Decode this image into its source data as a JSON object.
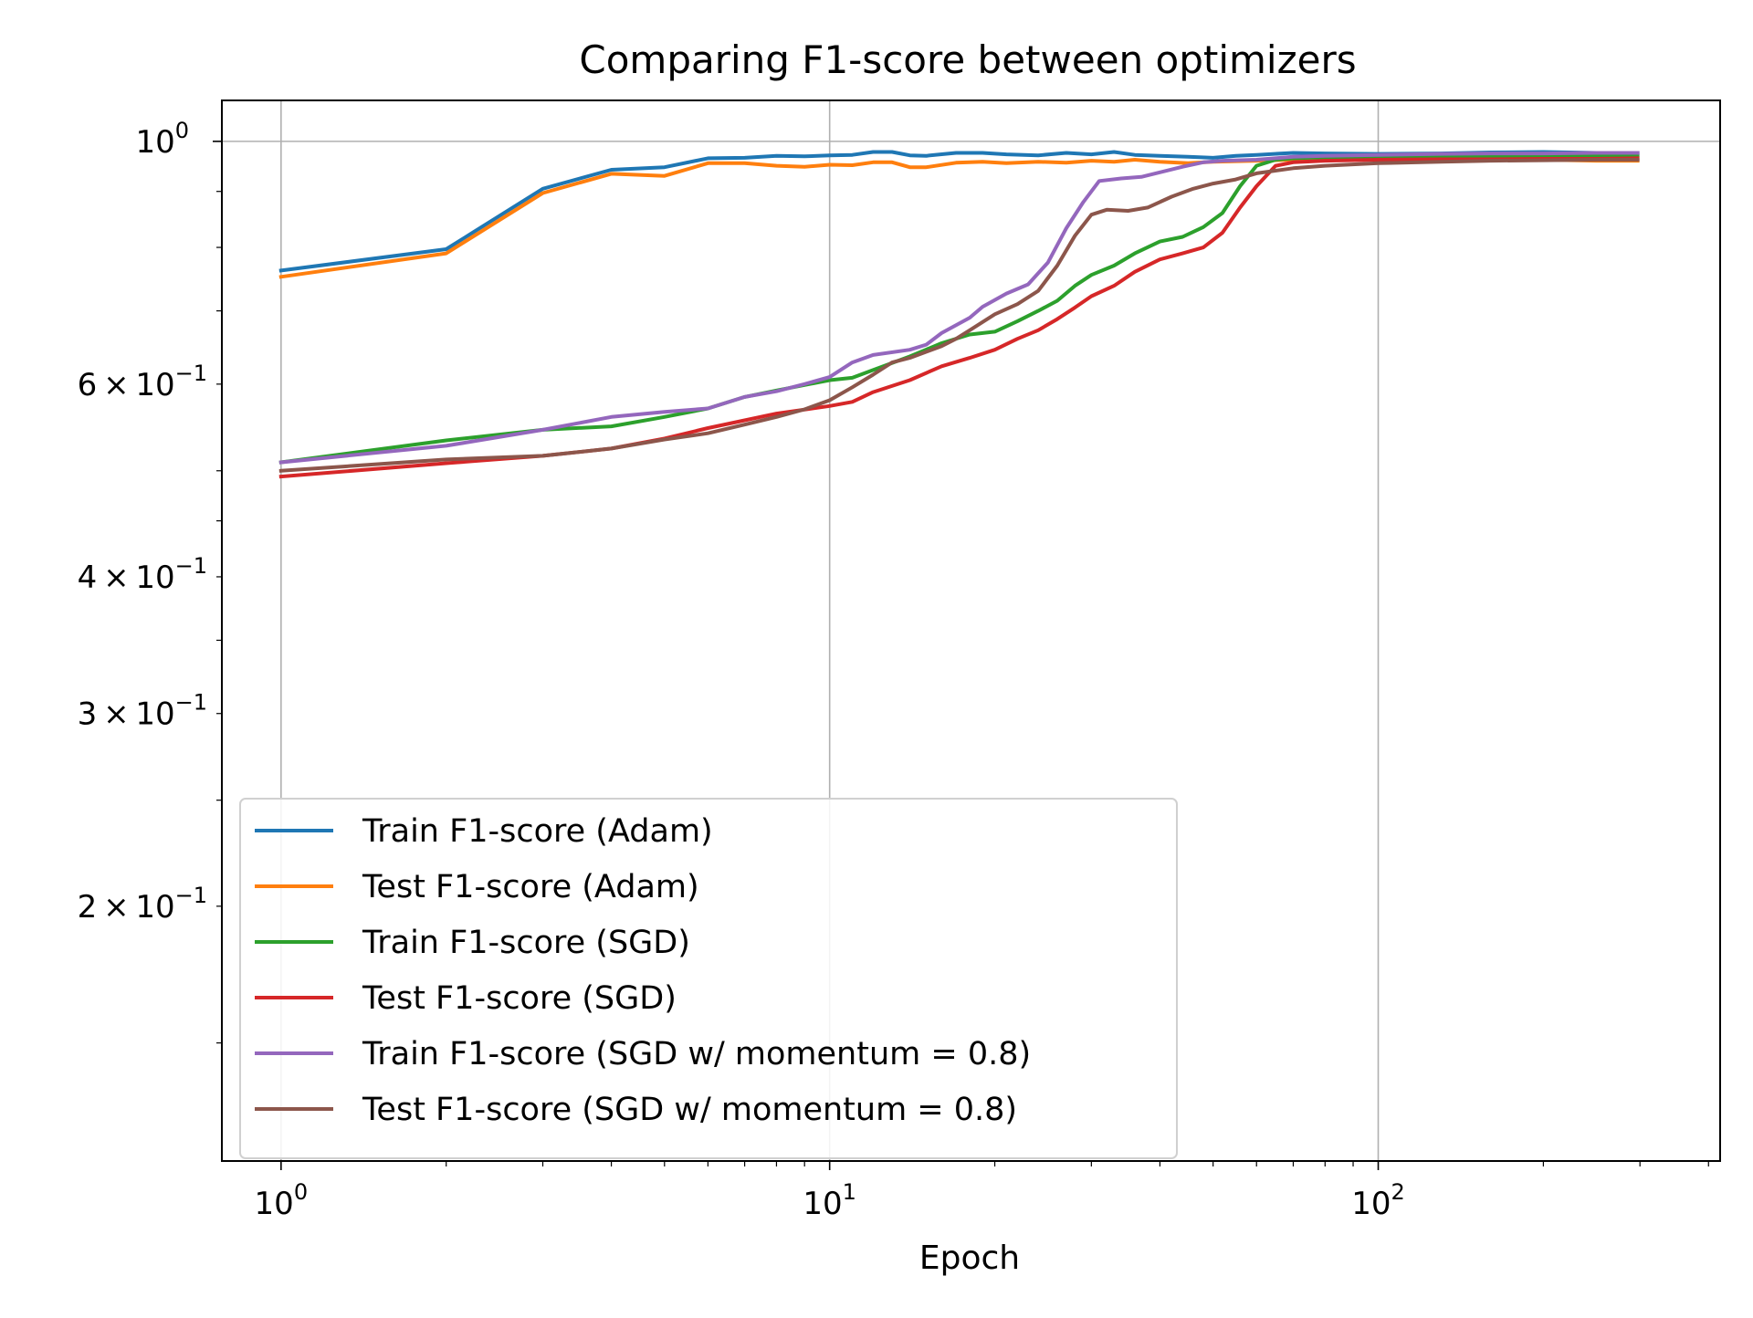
{
  "chart_data": {
    "type": "line",
    "title": "Comparing F1-score between optimizers",
    "xlabel": "Epoch",
    "ylabel": "",
    "xscale": "log",
    "yscale": "log",
    "xlim": [
      0.78,
      420
    ],
    "ylim": [
      0.117,
      1.09
    ],
    "grid": true,
    "legend_loc": "lower-left",
    "x_major_ticks": [
      {
        "value": 1,
        "base": "10",
        "exp": "0"
      },
      {
        "value": 10,
        "base": "10",
        "exp": "1"
      },
      {
        "value": 100,
        "base": "10",
        "exp": "2"
      }
    ],
    "y_major_ticks": [
      {
        "value": 1.0,
        "base": "10",
        "exp": "0",
        "mantissa": ""
      }
    ],
    "y_minor_ticks": [
      {
        "value": 0.6,
        "mantissa": "6",
        "base": "10",
        "exp": "−1"
      },
      {
        "value": 0.4,
        "mantissa": "4",
        "base": "10",
        "exp": "−1"
      },
      {
        "value": 0.3,
        "mantissa": "3",
        "base": "10",
        "exp": "−1"
      },
      {
        "value": 0.2,
        "mantissa": "2",
        "base": "10",
        "exp": "−1"
      }
    ],
    "series": [
      {
        "name": "Train F1-score (Adam)",
        "color": "#1f77b4",
        "points": [
          [
            1,
            0.762
          ],
          [
            2,
            0.797
          ],
          [
            3,
            0.905
          ],
          [
            4,
            0.942
          ],
          [
            5,
            0.947
          ],
          [
            6,
            0.965
          ],
          [
            7,
            0.966
          ],
          [
            8,
            0.97
          ],
          [
            9,
            0.969
          ],
          [
            10,
            0.971
          ],
          [
            11,
            0.972
          ],
          [
            12,
            0.978
          ],
          [
            13,
            0.978
          ],
          [
            14,
            0.971
          ],
          [
            15,
            0.97
          ],
          [
            17,
            0.976
          ],
          [
            19,
            0.976
          ],
          [
            21,
            0.973
          ],
          [
            24,
            0.971
          ],
          [
            27,
            0.976
          ],
          [
            30,
            0.973
          ],
          [
            33,
            0.978
          ],
          [
            36,
            0.972
          ],
          [
            40,
            0.97
          ],
          [
            45,
            0.968
          ],
          [
            50,
            0.966
          ],
          [
            55,
            0.97
          ],
          [
            60,
            0.972
          ],
          [
            70,
            0.976
          ],
          [
            80,
            0.975
          ],
          [
            100,
            0.974
          ],
          [
            130,
            0.975
          ],
          [
            160,
            0.977
          ],
          [
            200,
            0.978
          ],
          [
            250,
            0.976
          ],
          [
            297,
            0.976
          ]
        ]
      },
      {
        "name": "Test F1-score (Adam)",
        "color": "#ff7f0e",
        "points": [
          [
            1,
            0.752
          ],
          [
            2,
            0.79
          ],
          [
            3,
            0.897
          ],
          [
            4,
            0.934
          ],
          [
            5,
            0.93
          ],
          [
            6,
            0.955
          ],
          [
            7,
            0.955
          ],
          [
            8,
            0.95
          ],
          [
            9,
            0.948
          ],
          [
            10,
            0.952
          ],
          [
            11,
            0.951
          ],
          [
            12,
            0.957
          ],
          [
            13,
            0.957
          ],
          [
            14,
            0.947
          ],
          [
            15,
            0.947
          ],
          [
            17,
            0.956
          ],
          [
            19,
            0.958
          ],
          [
            21,
            0.955
          ],
          [
            24,
            0.958
          ],
          [
            27,
            0.956
          ],
          [
            30,
            0.96
          ],
          [
            33,
            0.958
          ],
          [
            36,
            0.962
          ],
          [
            40,
            0.958
          ],
          [
            45,
            0.955
          ],
          [
            50,
            0.958
          ],
          [
            60,
            0.96
          ],
          [
            70,
            0.962
          ],
          [
            80,
            0.963
          ],
          [
            100,
            0.962
          ],
          [
            130,
            0.963
          ],
          [
            160,
            0.961
          ],
          [
            200,
            0.962
          ],
          [
            250,
            0.96
          ],
          [
            297,
            0.96
          ]
        ]
      },
      {
        "name": "Train F1-score (SGD)",
        "color": "#2ca02c",
        "points": [
          [
            1,
            0.509
          ],
          [
            2,
            0.533
          ],
          [
            3,
            0.545
          ],
          [
            4,
            0.549
          ],
          [
            5,
            0.56
          ],
          [
            6,
            0.57
          ],
          [
            7,
            0.584
          ],
          [
            8,
            0.592
          ],
          [
            10,
            0.605
          ],
          [
            11,
            0.608
          ],
          [
            12,
            0.618
          ],
          [
            14,
            0.636
          ],
          [
            16,
            0.654
          ],
          [
            18,
            0.666
          ],
          [
            20,
            0.67
          ],
          [
            22,
            0.685
          ],
          [
            24,
            0.7
          ],
          [
            26,
            0.715
          ],
          [
            28,
            0.738
          ],
          [
            30,
            0.755
          ],
          [
            33,
            0.77
          ],
          [
            36,
            0.79
          ],
          [
            40,
            0.81
          ],
          [
            44,
            0.818
          ],
          [
            48,
            0.835
          ],
          [
            52,
            0.86
          ],
          [
            56,
            0.91
          ],
          [
            60,
            0.95
          ],
          [
            65,
            0.962
          ],
          [
            70,
            0.965
          ],
          [
            80,
            0.967
          ],
          [
            100,
            0.968
          ],
          [
            130,
            0.97
          ],
          [
            160,
            0.97
          ],
          [
            200,
            0.97
          ],
          [
            250,
            0.971
          ],
          [
            297,
            0.971
          ]
        ]
      },
      {
        "name": "Test F1-score (SGD)",
        "color": "#d62728",
        "points": [
          [
            1,
            0.494
          ],
          [
            2,
            0.508
          ],
          [
            3,
            0.516
          ],
          [
            4,
            0.524
          ],
          [
            5,
            0.535
          ],
          [
            6,
            0.547
          ],
          [
            7,
            0.556
          ],
          [
            8,
            0.564
          ],
          [
            10,
            0.573
          ],
          [
            11,
            0.578
          ],
          [
            12,
            0.59
          ],
          [
            14,
            0.605
          ],
          [
            16,
            0.623
          ],
          [
            18,
            0.634
          ],
          [
            20,
            0.645
          ],
          [
            22,
            0.66
          ],
          [
            24,
            0.672
          ],
          [
            26,
            0.688
          ],
          [
            28,
            0.705
          ],
          [
            30,
            0.722
          ],
          [
            33,
            0.738
          ],
          [
            36,
            0.76
          ],
          [
            40,
            0.78
          ],
          [
            44,
            0.79
          ],
          [
            48,
            0.8
          ],
          [
            52,
            0.825
          ],
          [
            56,
            0.87
          ],
          [
            60,
            0.91
          ],
          [
            65,
            0.95
          ],
          [
            70,
            0.957
          ],
          [
            80,
            0.96
          ],
          [
            100,
            0.962
          ],
          [
            130,
            0.963
          ],
          [
            160,
            0.963
          ],
          [
            200,
            0.964
          ],
          [
            250,
            0.964
          ],
          [
            297,
            0.965
          ]
        ]
      },
      {
        "name": "Train F1-score (SGD w/ momentum = 0.8)",
        "color": "#9467bd",
        "points": [
          [
            1,
            0.509
          ],
          [
            2,
            0.527
          ],
          [
            3,
            0.545
          ],
          [
            4,
            0.56
          ],
          [
            5,
            0.566
          ],
          [
            6,
            0.57
          ],
          [
            7,
            0.584
          ],
          [
            8,
            0.591
          ],
          [
            9,
            0.6
          ],
          [
            10,
            0.609
          ],
          [
            11,
            0.628
          ],
          [
            12,
            0.638
          ],
          [
            14,
            0.645
          ],
          [
            15,
            0.652
          ],
          [
            16,
            0.668
          ],
          [
            18,
            0.69
          ],
          [
            19,
            0.706
          ],
          [
            21,
            0.726
          ],
          [
            23,
            0.74
          ],
          [
            25,
            0.775
          ],
          [
            27,
            0.833
          ],
          [
            29,
            0.88
          ],
          [
            31,
            0.92
          ],
          [
            34,
            0.925
          ],
          [
            37,
            0.928
          ],
          [
            40,
            0.937
          ],
          [
            44,
            0.948
          ],
          [
            48,
            0.957
          ],
          [
            52,
            0.96
          ],
          [
            60,
            0.962
          ],
          [
            70,
            0.968
          ],
          [
            80,
            0.97
          ],
          [
            100,
            0.972
          ],
          [
            130,
            0.974
          ],
          [
            160,
            0.975
          ],
          [
            200,
            0.975
          ],
          [
            250,
            0.976
          ],
          [
            297,
            0.976
          ]
        ]
      },
      {
        "name": "Test F1-score (SGD w/ momentum = 0.8)",
        "color": "#8c564b",
        "points": [
          [
            1,
            0.5
          ],
          [
            2,
            0.512
          ],
          [
            3,
            0.516
          ],
          [
            4,
            0.524
          ],
          [
            5,
            0.534
          ],
          [
            6,
            0.541
          ],
          [
            7,
            0.551
          ],
          [
            8,
            0.56
          ],
          [
            9,
            0.569
          ],
          [
            10,
            0.58
          ],
          [
            11,
            0.596
          ],
          [
            12,
            0.612
          ],
          [
            13,
            0.628
          ],
          [
            14,
            0.634
          ],
          [
            16,
            0.65
          ],
          [
            17,
            0.66
          ],
          [
            18,
            0.672
          ],
          [
            20,
            0.695
          ],
          [
            22,
            0.71
          ],
          [
            24,
            0.73
          ],
          [
            26,
            0.77
          ],
          [
            28,
            0.82
          ],
          [
            30,
            0.857
          ],
          [
            32,
            0.866
          ],
          [
            35,
            0.864
          ],
          [
            38,
            0.87
          ],
          [
            42,
            0.89
          ],
          [
            46,
            0.905
          ],
          [
            50,
            0.915
          ],
          [
            55,
            0.923
          ],
          [
            60,
            0.935
          ],
          [
            70,
            0.945
          ],
          [
            80,
            0.95
          ],
          [
            100,
            0.955
          ],
          [
            130,
            0.958
          ],
          [
            160,
            0.96
          ],
          [
            200,
            0.961
          ],
          [
            250,
            0.962
          ],
          [
            297,
            0.962
          ]
        ]
      }
    ]
  }
}
